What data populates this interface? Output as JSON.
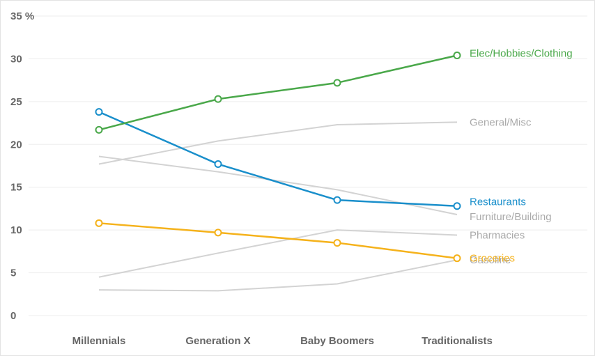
{
  "chart_data": {
    "type": "line",
    "title": "",
    "xlabel": "",
    "ylabel": "",
    "y_unit_label": "35 %",
    "ylim": [
      0,
      35
    ],
    "yticks": [
      0,
      5,
      10,
      15,
      20,
      25,
      30,
      35
    ],
    "categories": [
      "Millennials",
      "Generation X",
      "Baby Boomers",
      "Traditionalists"
    ],
    "grid": true,
    "series": [
      {
        "name": "General/Misc",
        "values": [
          17.7,
          20.4,
          22.3,
          22.6
        ],
        "color": "#d3d3d3",
        "markers": false
      },
      {
        "name": "Furniture/Building",
        "values": [
          18.6,
          16.8,
          14.7,
          11.8
        ],
        "color": "#d3d3d3",
        "markers": false
      },
      {
        "name": "Pharmacies",
        "values": [
          4.5,
          7.3,
          10.0,
          9.4
        ],
        "color": "#d3d3d3",
        "markers": false
      },
      {
        "name": "Gasoline",
        "values": [
          3.0,
          2.9,
          3.7,
          6.5
        ],
        "color": "#d3d3d3",
        "markers": false
      },
      {
        "name": "Groceries",
        "values": [
          10.8,
          9.7,
          8.5,
          6.7
        ],
        "color": "#f5b21b",
        "markers": true
      },
      {
        "name": "Restaurants",
        "values": [
          23.8,
          17.7,
          13.5,
          12.8
        ],
        "color": "#1a8fcb",
        "markers": true
      },
      {
        "name": "Elec/Hobbies/Clothing",
        "values": [
          21.7,
          25.3,
          27.2,
          30.4
        ],
        "color": "#4aa84a",
        "markers": true
      }
    ]
  }
}
